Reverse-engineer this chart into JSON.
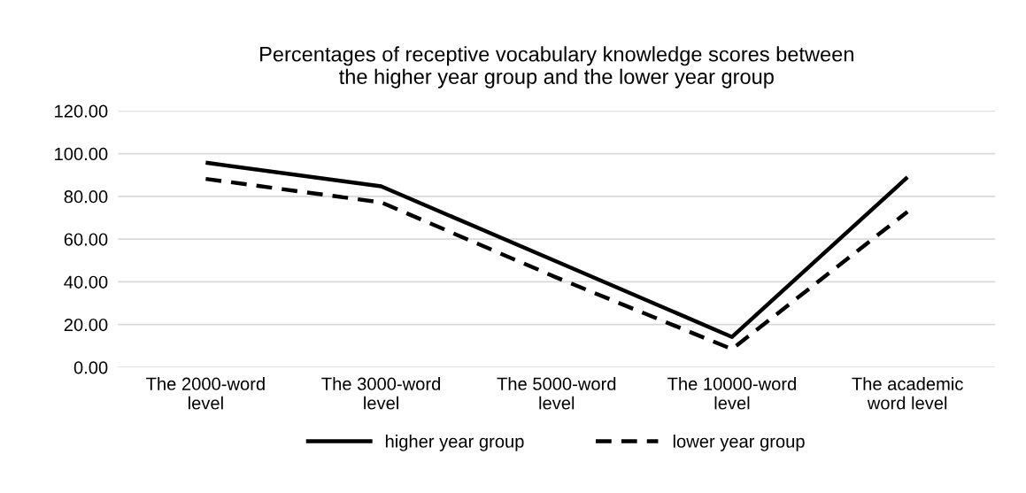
{
  "chart_data": {
    "type": "line",
    "title": "Percentages of receptive vocabulary knowledge scores between\nthe higher year group and the lower year group",
    "categories": [
      "The 2000-word\nlevel",
      "The 3000-word\nlevel",
      "The 5000-word\nlevel",
      "The 10000-word\nlevel",
      "The academic\nword level"
    ],
    "series": [
      {
        "name": "higher year group",
        "color": "#000000",
        "line_style": "solid",
        "values": [
          95.8,
          84.7,
          49.5,
          14.2,
          89.0
        ]
      },
      {
        "name": "lower year group",
        "color": "#000000",
        "line_style": "dashed",
        "values": [
          88.2,
          77.2,
          42.0,
          8.5,
          72.8
        ]
      }
    ],
    "ylim": [
      0,
      120
    ],
    "yticks": [
      {
        "value": 0,
        "label": "0.00"
      },
      {
        "value": 20,
        "label": "20.00"
      },
      {
        "value": 40,
        "label": "40.00"
      },
      {
        "value": 60,
        "label": "60.00"
      },
      {
        "value": 80,
        "label": "80.00"
      },
      {
        "value": 100,
        "label": "100.00"
      },
      {
        "value": 120,
        "label": "120.00"
      }
    ],
    "grid": "y",
    "legend": "bottom",
    "marker": "none"
  }
}
